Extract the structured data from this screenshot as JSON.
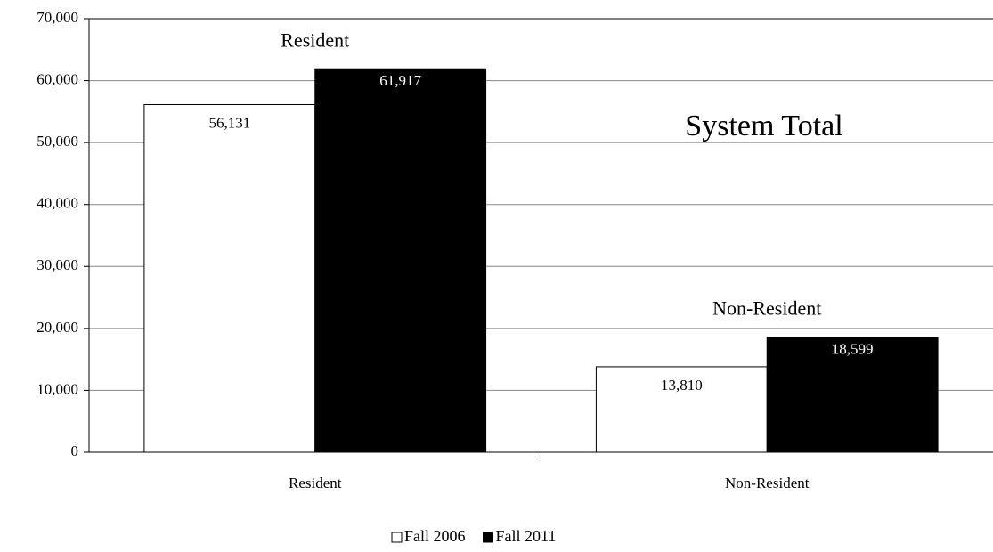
{
  "chart_data": {
    "type": "bar",
    "categories": [
      "Resident",
      "Non-Resident"
    ],
    "series": [
      {
        "name": "Fall 2006",
        "color": "#ffffff",
        "values": [
          56131,
          13810
        ],
        "value_labels": [
          "56,131",
          "13,810"
        ]
      },
      {
        "name": "Fall 2011",
        "color": "#000000",
        "values": [
          61917,
          18599
        ],
        "value_labels": [
          "61,917",
          "18,599"
        ]
      }
    ],
    "annotations": [
      "Resident",
      "Non-Resident",
      "System Total"
    ],
    "ylim": [
      0,
      70000
    ],
    "yticks": [
      0,
      {
        "value": 10000,
        "label": "10,000"
      },
      {
        "value": 20000,
        "label": "20,000"
      },
      {
        "value": 30000,
        "label": "30,000"
      },
      {
        "value": 40000,
        "label": "40,000"
      },
      {
        "value": 50000,
        "label": "50,000"
      },
      {
        "value": 60000,
        "label": "60,000"
      },
      {
        "value": 70000,
        "label": "70,000"
      }
    ],
    "grid": true,
    "legend": "bottom"
  }
}
